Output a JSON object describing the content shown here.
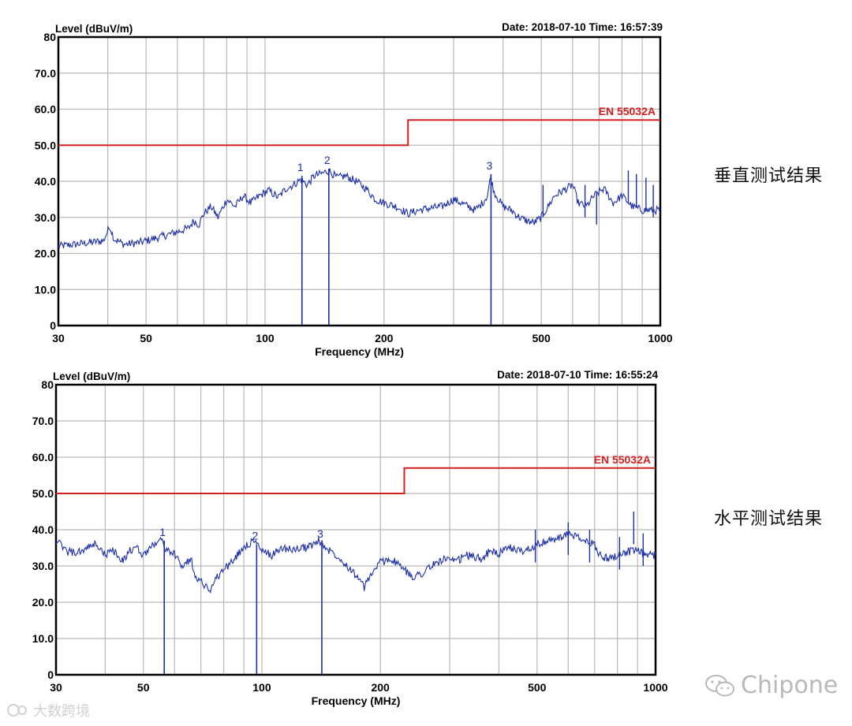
{
  "captions": {
    "vertical": "垂直测试结果",
    "horizontal": "水平测试结果"
  },
  "watermarks": {
    "chipone": "Chipone",
    "bottom_left": "大数跨境"
  },
  "colors": {
    "trace": "#1c2fa8",
    "limit": "#d42020",
    "grid": "#b8b8b8",
    "axis": "#000000"
  },
  "chart_data": [
    {
      "type": "line",
      "header_left": "Level (dBuV/m)",
      "header_right": "Date: 2018-07-10  Time: 16:57:39",
      "xlabel": "Frequency (MHz)",
      "xscale": "log",
      "xlim": [
        30,
        1000
      ],
      "ylim": [
        0,
        80
      ],
      "x_ticks": [
        "30",
        "50",
        "100",
        "200",
        "500",
        "1000"
      ],
      "y_ticks": [
        "0",
        "10.0",
        "20.0",
        "30.0",
        "40.0",
        "50.0",
        "60.0",
        "70.0",
        "80"
      ],
      "grid": true,
      "limit_line": {
        "name": "EN 55032A",
        "segments": [
          {
            "x": [
              30,
              230
            ],
            "y": 50
          },
          {
            "x": [
              230,
              1000
            ],
            "y": 57
          }
        ]
      },
      "trace": {
        "points": [
          [
            30,
            22
          ],
          [
            33,
            22.5
          ],
          [
            36,
            23
          ],
          [
            39,
            23.5
          ],
          [
            40.5,
            27.5
          ],
          [
            41.5,
            24
          ],
          [
            44,
            22.5
          ],
          [
            48,
            23
          ],
          [
            52,
            24
          ],
          [
            56,
            25
          ],
          [
            60,
            26
          ],
          [
            64,
            27
          ],
          [
            66,
            29
          ],
          [
            68,
            28
          ],
          [
            70,
            31
          ],
          [
            73,
            33
          ],
          [
            76,
            30
          ],
          [
            80,
            35
          ],
          [
            84,
            33
          ],
          [
            88,
            36
          ],
          [
            92,
            34
          ],
          [
            97,
            36
          ],
          [
            102,
            37.5
          ],
          [
            108,
            35.5
          ],
          [
            113,
            38
          ],
          [
            118,
            39
          ],
          [
            123,
            40.5
          ],
          [
            128,
            39
          ],
          [
            133,
            41.5
          ],
          [
            138,
            42
          ],
          [
            145,
            43
          ],
          [
            152,
            41
          ],
          [
            160,
            41.5
          ],
          [
            170,
            40
          ],
          [
            180,
            38
          ],
          [
            190,
            35
          ],
          [
            200,
            34
          ],
          [
            215,
            33
          ],
          [
            230,
            31
          ],
          [
            245,
            32
          ],
          [
            260,
            32.5
          ],
          [
            280,
            33
          ],
          [
            300,
            35
          ],
          [
            320,
            33.5
          ],
          [
            340,
            32
          ],
          [
            355,
            34
          ],
          [
            365,
            36
          ],
          [
            372,
            41
          ],
          [
            380,
            37
          ],
          [
            400,
            33
          ],
          [
            420,
            32
          ],
          [
            440,
            30
          ],
          [
            460,
            29
          ],
          [
            480,
            28.5
          ],
          [
            500,
            30
          ],
          [
            520,
            33
          ],
          [
            540,
            36
          ],
          [
            560,
            37
          ],
          [
            580,
            38
          ],
          [
            600,
            39
          ],
          [
            620,
            34
          ],
          [
            650,
            33
          ],
          [
            680,
            36
          ],
          [
            720,
            38
          ],
          [
            760,
            34
          ],
          [
            800,
            36
          ],
          [
            850,
            33
          ],
          [
            900,
            32
          ],
          [
            950,
            32
          ],
          [
            1000,
            32
          ]
        ],
        "spikes": [
          [
            505,
            39
          ],
          [
            645,
            39
          ],
          [
            690,
            37
          ],
          [
            830,
            43
          ],
          [
            870,
            42
          ],
          [
            920,
            41
          ],
          [
            960,
            39
          ]
        ]
      },
      "markers": [
        {
          "label": "1",
          "x": 124,
          "y": 41.5
        },
        {
          "label": "2",
          "x": 145,
          "y": 43.5
        },
        {
          "label": "3",
          "x": 373,
          "y": 42
        }
      ]
    },
    {
      "type": "line",
      "header_left": "Level (dBuV/m)",
      "header_right": "Date: 2018-07-10  Time: 16:55:24",
      "xlabel": "Frequency (MHz)",
      "xscale": "log",
      "xlim": [
        30,
        1000
      ],
      "ylim": [
        0,
        80
      ],
      "x_ticks": [
        "30",
        "50",
        "100",
        "200",
        "500",
        "1000"
      ],
      "y_ticks": [
        "0",
        "10.0",
        "20.0",
        "30.0",
        "40.0",
        "50.0",
        "60.0",
        "70.0",
        "80"
      ],
      "grid": true,
      "limit_line": {
        "name": "EN 55032A",
        "segments": [
          {
            "x": [
              30,
              230
            ],
            "y": 50
          },
          {
            "x": [
              230,
              1000
            ],
            "y": 57
          }
        ]
      },
      "trace": {
        "points": [
          [
            30,
            37
          ],
          [
            32,
            34
          ],
          [
            34,
            33.5
          ],
          [
            36,
            35
          ],
          [
            38,
            36
          ],
          [
            40,
            33
          ],
          [
            42,
            34.5
          ],
          [
            44,
            31
          ],
          [
            46,
            34
          ],
          [
            48,
            35
          ],
          [
            50,
            33
          ],
          [
            53,
            36
          ],
          [
            55,
            37.5
          ],
          [
            57,
            35
          ],
          [
            60,
            33
          ],
          [
            63,
            30
          ],
          [
            66,
            32
          ],
          [
            68,
            27
          ],
          [
            71,
            25
          ],
          [
            74,
            23.5
          ],
          [
            77,
            27
          ],
          [
            80,
            29
          ],
          [
            84,
            31
          ],
          [
            88,
            34
          ],
          [
            92,
            36
          ],
          [
            96,
            37
          ],
          [
            100,
            34
          ],
          [
            106,
            33
          ],
          [
            112,
            35
          ],
          [
            120,
            34.5
          ],
          [
            128,
            35
          ],
          [
            136,
            36
          ],
          [
            140,
            37
          ],
          [
            145,
            35
          ],
          [
            155,
            33
          ],
          [
            165,
            30
          ],
          [
            175,
            27
          ],
          [
            182,
            24
          ],
          [
            190,
            28
          ],
          [
            200,
            31
          ],
          [
            212,
            32
          ],
          [
            225,
            30
          ],
          [
            240,
            27
          ],
          [
            255,
            28
          ],
          [
            270,
            30
          ],
          [
            290,
            32
          ],
          [
            310,
            31
          ],
          [
            330,
            33
          ],
          [
            360,
            32
          ],
          [
            380,
            34
          ],
          [
            400,
            33.5
          ],
          [
            430,
            35
          ],
          [
            460,
            34
          ],
          [
            500,
            36
          ],
          [
            540,
            37
          ],
          [
            580,
            38
          ],
          [
            610,
            39
          ],
          [
            650,
            37
          ],
          [
            700,
            36
          ],
          [
            720,
            33
          ],
          [
            760,
            32
          ],
          [
            800,
            33
          ],
          [
            850,
            34
          ],
          [
            900,
            34
          ],
          [
            950,
            33
          ],
          [
            1000,
            33
          ]
        ],
        "spikes": [
          [
            495,
            40
          ],
          [
            600,
            42
          ],
          [
            680,
            40
          ],
          [
            810,
            38
          ],
          [
            880,
            45
          ],
          [
            930,
            39
          ]
        ]
      },
      "markers": [
        {
          "label": "1",
          "x": 56.5,
          "y": 37
        },
        {
          "label": "2",
          "x": 97,
          "y": 36
        },
        {
          "label": "3",
          "x": 142,
          "y": 36.5
        }
      ]
    }
  ]
}
